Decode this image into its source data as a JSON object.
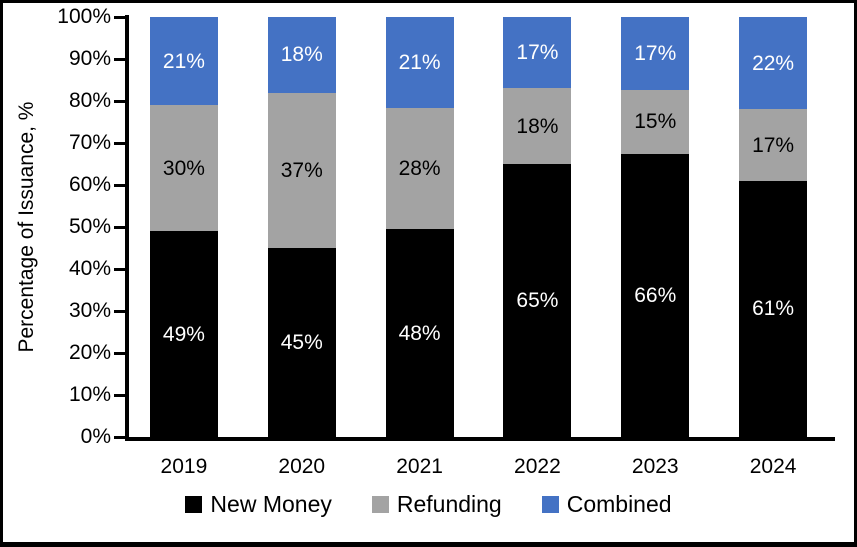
{
  "chart_data": {
    "type": "bar",
    "stacked": true,
    "title": "",
    "ylabel": "Percentage of Issuance, %",
    "xlabel": "",
    "categories": [
      "2019",
      "2020",
      "2021",
      "2022",
      "2023",
      "2024"
    ],
    "series": [
      {
        "name": "New Money",
        "color": "#000000",
        "label_color": "#FFFFFF",
        "values": [
          49,
          45,
          48,
          65,
          66,
          61
        ]
      },
      {
        "name": "Refunding",
        "color": "#A3A3A3",
        "label_color": "#000000",
        "values": [
          30,
          37,
          28,
          18,
          15,
          17
        ]
      },
      {
        "name": "Combined",
        "color": "#4472C4",
        "label_color": "#FFFFFF",
        "values": [
          21,
          18,
          21,
          17,
          17,
          22
        ]
      }
    ],
    "value_suffix": "%",
    "y_axis": {
      "min": 0,
      "max": 100,
      "step": 10,
      "suffix": "%"
    },
    "legend_position": "bottom",
    "grid": false
  }
}
